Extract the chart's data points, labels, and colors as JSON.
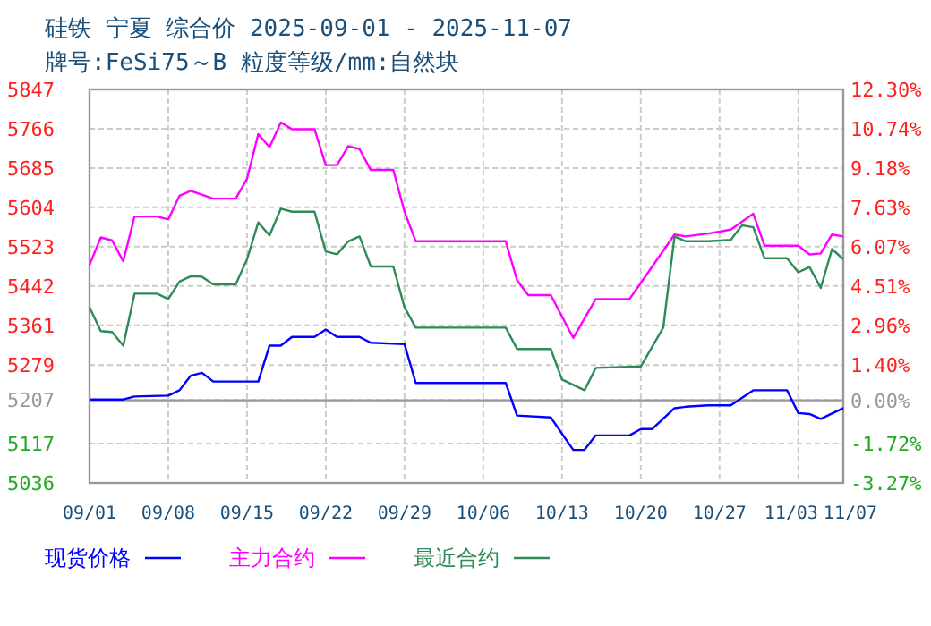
{
  "chart_data": {
    "type": "line",
    "title": "硅铁 宁夏 综合价 2025-09-01 - 2025-11-07",
    "subtitle": "牌号:FeSi75～B 粒度等级/mm:自然块",
    "xlim": [
      "2025-09-01",
      "2025-11-07"
    ],
    "xticks": [
      {
        "value": "2025-09-01",
        "label": "09/01"
      },
      {
        "value": "2025-09-08",
        "label": "09/08"
      },
      {
        "value": "2025-09-15",
        "label": "09/15"
      },
      {
        "value": "2025-09-22",
        "label": "09/22"
      },
      {
        "value": "2025-09-29",
        "label": "09/29"
      },
      {
        "value": "2025-10-06",
        "label": "10/06"
      },
      {
        "value": "2025-10-13",
        "label": "10/13"
      },
      {
        "value": "2025-10-20",
        "label": "10/20"
      },
      {
        "value": "2025-10-27",
        "label": "10/27"
      },
      {
        "value": "2025-11-03",
        "label": "11/03"
      },
      {
        "value": "2025-11-07",
        "label": "11/07"
      }
    ],
    "ylim": [
      5036,
      5847
    ],
    "yticks": [
      5036,
      5117,
      5207,
      5279,
      5361,
      5442,
      5523,
      5604,
      5685,
      5766,
      5847
    ],
    "y2lim": [
      -3.27,
      12.3
    ],
    "y2ticks": [
      {
        "value": -3.27,
        "label": "-3.27%"
      },
      {
        "value": -1.72,
        "label": "-1.72%"
      },
      {
        "value": 0,
        "label": "0.00%"
      },
      {
        "value": 1.4,
        "label": "1.40%"
      },
      {
        "value": 2.96,
        "label": "2.96%"
      },
      {
        "value": 4.51,
        "label": "4.51%"
      },
      {
        "value": 6.07,
        "label": "6.07%"
      },
      {
        "value": 7.63,
        "label": "7.63%"
      },
      {
        "value": 9.18,
        "label": "9.18%"
      },
      {
        "value": 10.74,
        "label": "10.74%"
      },
      {
        "value": 12.3,
        "label": "12.30%"
      }
    ],
    "ref_lines": [
      {
        "axis": "y2",
        "value": 0,
        "color": "#999999",
        "line_style": "solid"
      }
    ],
    "grid": true,
    "legend": "bottom",
    "line_style": "solid",
    "marker": "none",
    "series": [
      {
        "name": "现货价格",
        "color": "#0000ff",
        "x": [
          "2025-09-01",
          "2025-09-04",
          "2025-09-05",
          "2025-09-08",
          "2025-09-09",
          "2025-09-10",
          "2025-09-11",
          "2025-09-12",
          "2025-09-16",
          "2025-09-17",
          "2025-09-18",
          "2025-09-19",
          "2025-09-21",
          "2025-09-22",
          "2025-09-23",
          "2025-09-25",
          "2025-09-26",
          "2025-09-29",
          "2025-09-30",
          "2025-10-08",
          "2025-10-09",
          "2025-10-12",
          "2025-10-14",
          "2025-10-15",
          "2025-10-16",
          "2025-10-19",
          "2025-10-20",
          "2025-10-21",
          "2025-10-23",
          "2025-10-24",
          "2025-10-26",
          "2025-10-28",
          "2025-10-30",
          "2025-11-02",
          "2025-11-03",
          "2025-11-04",
          "2025-11-05",
          "2025-11-07"
        ],
        "values": [
          5208,
          5208,
          5214,
          5216,
          5227,
          5257,
          5263,
          5245,
          5245,
          5319,
          5319,
          5337,
          5337,
          5352,
          5337,
          5337,
          5325,
          5322,
          5242,
          5242,
          5175,
          5171,
          5104,
          5104,
          5134,
          5134,
          5147,
          5147,
          5190,
          5193,
          5196,
          5196,
          5227,
          5227,
          5180,
          5178,
          5168,
          5190
        ]
      },
      {
        "name": "主力合约",
        "color": "#ff00ff",
        "x": [
          "2025-09-01",
          "2025-09-02",
          "2025-09-03",
          "2025-09-04",
          "2025-09-05",
          "2025-09-07",
          "2025-09-08",
          "2025-09-09",
          "2025-09-10",
          "2025-09-12",
          "2025-09-14",
          "2025-09-15",
          "2025-09-16",
          "2025-09-17",
          "2025-09-18",
          "2025-09-19",
          "2025-09-21",
          "2025-09-22",
          "2025-09-23",
          "2025-09-24",
          "2025-09-25",
          "2025-09-26",
          "2025-09-28",
          "2025-09-29",
          "2025-09-30",
          "2025-10-08",
          "2025-10-09",
          "2025-10-10",
          "2025-10-12",
          "2025-10-14",
          "2025-10-16",
          "2025-10-19",
          "2025-10-20",
          "2025-10-23",
          "2025-10-24",
          "2025-10-26",
          "2025-10-28",
          "2025-10-30",
          "2025-10-31",
          "2025-11-03",
          "2025-11-04",
          "2025-11-05",
          "2025-11-06",
          "2025-11-07"
        ],
        "values": [
          5485,
          5542,
          5536,
          5493,
          5585,
          5585,
          5579,
          5628,
          5638,
          5622,
          5622,
          5663,
          5755,
          5728,
          5779,
          5765,
          5765,
          5691,
          5691,
          5730,
          5724,
          5681,
          5681,
          5595,
          5534,
          5534,
          5454,
          5423,
          5423,
          5335,
          5415,
          5415,
          5448,
          5548,
          5544,
          5550,
          5558,
          5591,
          5525,
          5525,
          5507,
          5509,
          5548,
          5544
        ]
      },
      {
        "name": "最近合约",
        "color": "#2e8b57",
        "x": [
          "2025-09-01",
          "2025-09-02",
          "2025-09-03",
          "2025-09-04",
          "2025-09-05",
          "2025-09-07",
          "2025-09-08",
          "2025-09-09",
          "2025-09-10",
          "2025-09-11",
          "2025-09-12",
          "2025-09-14",
          "2025-09-15",
          "2025-09-16",
          "2025-09-17",
          "2025-09-18",
          "2025-09-19",
          "2025-09-21",
          "2025-09-22",
          "2025-09-23",
          "2025-09-24",
          "2025-09-25",
          "2025-09-26",
          "2025-09-28",
          "2025-09-29",
          "2025-09-30",
          "2025-10-08",
          "2025-10-09",
          "2025-10-12",
          "2025-10-13",
          "2025-10-15",
          "2025-10-16",
          "2025-10-20",
          "2025-10-22",
          "2025-10-23",
          "2025-10-24",
          "2025-10-26",
          "2025-10-28",
          "2025-10-29",
          "2025-10-30",
          "2025-10-31",
          "2025-11-02",
          "2025-11-03",
          "2025-11-04",
          "2025-11-05",
          "2025-11-06",
          "2025-11-07"
        ],
        "values": [
          5398,
          5349,
          5347,
          5319,
          5426,
          5426,
          5415,
          5451,
          5462,
          5461,
          5445,
          5445,
          5497,
          5573,
          5546,
          5601,
          5595,
          5595,
          5513,
          5507,
          5534,
          5544,
          5482,
          5482,
          5398,
          5356,
          5356,
          5312,
          5312,
          5249,
          5227,
          5273,
          5276,
          5356,
          5544,
          5534,
          5534,
          5537,
          5567,
          5563,
          5499,
          5499,
          5470,
          5481,
          5438,
          5518,
          5497
        ]
      }
    ]
  }
}
